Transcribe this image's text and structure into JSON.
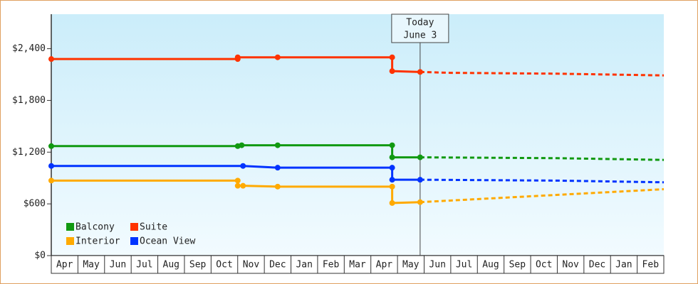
{
  "chart_data": {
    "type": "line",
    "categories": [
      "Apr",
      "May",
      "Jun",
      "Jul",
      "Aug",
      "Sep",
      "Oct",
      "Nov",
      "Dec",
      "Jan",
      "Feb",
      "Mar",
      "Apr",
      "May",
      "Jun",
      "Jul",
      "Aug",
      "Sep",
      "Oct",
      "Nov",
      "Dec",
      "Jan",
      "Feb"
    ],
    "xlim": [
      0,
      23
    ],
    "ylim": [
      0,
      2800
    ],
    "yticks": [
      {
        "value": 0,
        "label": "$0"
      },
      {
        "value": 600,
        "label": "$600"
      },
      {
        "value": 1200,
        "label": "$1,200"
      },
      {
        "value": 1800,
        "label": "$1,800"
      },
      {
        "value": 2400,
        "label": "$2,400"
      }
    ],
    "today": {
      "x": 13.85,
      "label": [
        "Today",
        "June 3"
      ]
    },
    "legend": "lower left",
    "series": [
      {
        "name": "Balcony",
        "color": "#119911",
        "x": [
          0,
          7.0,
          7.15,
          8.5,
          12.8,
          12.8,
          13.85
        ],
        "values": [
          1270,
          1270,
          1280,
          1280,
          1280,
          1140,
          1140
        ],
        "forecast_x": [
          13.85,
          19,
          23
        ],
        "forecast_values": [
          1140,
          1130,
          1110
        ]
      },
      {
        "name": "Suite",
        "color": "#ff3300",
        "x": [
          0,
          7.0,
          7.0,
          8.5,
          12.8,
          12.8,
          13.85
        ],
        "values": [
          2280,
          2280,
          2300,
          2300,
          2300,
          2140,
          2130
        ],
        "forecast_x": [
          13.85,
          15,
          19,
          23
        ],
        "forecast_values": [
          2130,
          2120,
          2110,
          2090
        ]
      },
      {
        "name": "Interior",
        "color": "#ffaa00",
        "x": [
          0,
          7.0,
          7.0,
          7.2,
          8.5,
          12.8,
          12.8,
          13.85
        ],
        "values": [
          870,
          870,
          810,
          810,
          800,
          800,
          610,
          620
        ],
        "forecast_x": [
          13.85,
          23
        ],
        "forecast_values": [
          620,
          770
        ]
      },
      {
        "name": "Ocean View",
        "color": "#0033ff",
        "x": [
          0,
          7.2,
          8.5,
          12.8,
          12.8,
          13.85
        ],
        "values": [
          1040,
          1040,
          1020,
          1020,
          880,
          880
        ],
        "forecast_x": [
          13.85,
          19,
          23
        ],
        "forecast_values": [
          880,
          870,
          850
        ]
      }
    ]
  }
}
